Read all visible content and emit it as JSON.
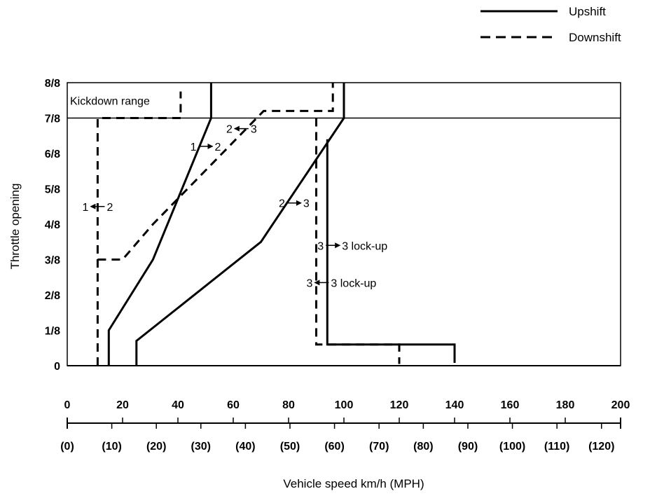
{
  "chart_data": {
    "type": "line",
    "title": "",
    "ylabel": "Throttle opening",
    "xlabel": "Vehicle speed  km/h (MPH)",
    "xlim": [
      0,
      200
    ],
    "ylim": [
      0,
      8
    ],
    "y_ticks": [
      {
        "value": 0,
        "label": "0"
      },
      {
        "value": 1,
        "label": "1/8"
      },
      {
        "value": 2,
        "label": "2/8"
      },
      {
        "value": 3,
        "label": "3/8"
      },
      {
        "value": 4,
        "label": "4/8"
      },
      {
        "value": 5,
        "label": "5/8"
      },
      {
        "value": 6,
        "label": "6/8"
      },
      {
        "value": 7,
        "label": "7/8"
      },
      {
        "value": 8,
        "label": "8/8"
      }
    ],
    "x_ticks_kmh": [
      {
        "value": 0,
        "label": "0"
      },
      {
        "value": 20,
        "label": "20"
      },
      {
        "value": 40,
        "label": "40"
      },
      {
        "value": 60,
        "label": "60"
      },
      {
        "value": 80,
        "label": "80"
      },
      {
        "value": 100,
        "label": "100"
      },
      {
        "value": 120,
        "label": "120"
      },
      {
        "value": 140,
        "label": "140"
      },
      {
        "value": 160,
        "label": "160"
      },
      {
        "value": 180,
        "label": "180"
      },
      {
        "value": 200,
        "label": "200"
      }
    ],
    "x_ticks_mph": [
      {
        "value": 0,
        "label": "(0)"
      },
      {
        "value": 16.1,
        "label": "(10)"
      },
      {
        "value": 32.2,
        "label": "(20)"
      },
      {
        "value": 48.3,
        "label": "(30)"
      },
      {
        "value": 64.4,
        "label": "(40)"
      },
      {
        "value": 80.5,
        "label": "(50)"
      },
      {
        "value": 96.6,
        "label": "(60)"
      },
      {
        "value": 112.7,
        "label": "(70)"
      },
      {
        "value": 128.7,
        "label": "(80)"
      },
      {
        "value": 144.8,
        "label": "(90)"
      },
      {
        "value": 160.9,
        "label": "(100)"
      },
      {
        "value": 177.0,
        "label": "(110)"
      },
      {
        "value": 193.1,
        "label": "(120)"
      }
    ],
    "legend": {
      "placement": "top-right",
      "entries": [
        {
          "label": "Upshift",
          "style": "solid"
        },
        {
          "label": "Downshift",
          "style": "dashed"
        }
      ]
    },
    "series": [
      {
        "key": "up12",
        "style": "solid",
        "points": [
          [
            15,
            0
          ],
          [
            15,
            1
          ],
          [
            31,
            3
          ],
          [
            52,
            7
          ],
          [
            52,
            8
          ]
        ]
      },
      {
        "key": "up23",
        "style": "solid",
        "points": [
          [
            25,
            0
          ],
          [
            25,
            0.7
          ],
          [
            70,
            3.5
          ],
          [
            100,
            7
          ],
          [
            100,
            8
          ]
        ]
      },
      {
        "key": "up3lock",
        "style": "solid",
        "points": [
          [
            94,
            6.4
          ],
          [
            94,
            0.6
          ],
          [
            140,
            0.6
          ],
          [
            140,
            0.08
          ]
        ]
      },
      {
        "key": "down21",
        "style": "dashed",
        "points": [
          [
            11,
            0
          ],
          [
            11,
            7
          ],
          [
            41,
            7
          ],
          [
            41,
            7.75
          ]
        ]
      },
      {
        "key": "down32",
        "style": "dashed",
        "points": [
          [
            11,
            3
          ],
          [
            20,
            3
          ],
          [
            31,
            4
          ],
          [
            56,
            6
          ],
          [
            71,
            7.2
          ],
          [
            96,
            7.2
          ],
          [
            96,
            8
          ]
        ]
      },
      {
        "key": "down3lock",
        "style": "dashed",
        "points": [
          [
            90,
            7
          ],
          [
            90,
            0.6
          ],
          [
            120,
            0.6
          ],
          [
            120,
            0.05
          ]
        ]
      },
      {
        "key": "zero_line",
        "style": "solid",
        "thin": true,
        "points": [
          [
            0,
            0
          ],
          [
            200,
            0
          ]
        ]
      }
    ],
    "regions": [
      {
        "label": "Kickdown range",
        "y_from": 7,
        "y_to": 8
      }
    ],
    "annotations": [
      {
        "from": "1",
        "to": "2",
        "direction": "left",
        "x": 11,
        "y": 4.5
      },
      {
        "from": "1",
        "to": "2",
        "direction": "right",
        "x": 50,
        "y": 6.2
      },
      {
        "from": "2",
        "to": "3",
        "direction": "left",
        "x": 63,
        "y": 6.7
      },
      {
        "from": "2",
        "to": "3",
        "direction": "right",
        "x": 82,
        "y": 4.6
      },
      {
        "from": "3",
        "to": "3 lock-up",
        "direction": "right",
        "x": 96,
        "y": 3.4
      },
      {
        "from": "3",
        "to": "3 lock-up",
        "direction": "left",
        "x": 92,
        "y": 2.35
      }
    ],
    "grid": false
  }
}
